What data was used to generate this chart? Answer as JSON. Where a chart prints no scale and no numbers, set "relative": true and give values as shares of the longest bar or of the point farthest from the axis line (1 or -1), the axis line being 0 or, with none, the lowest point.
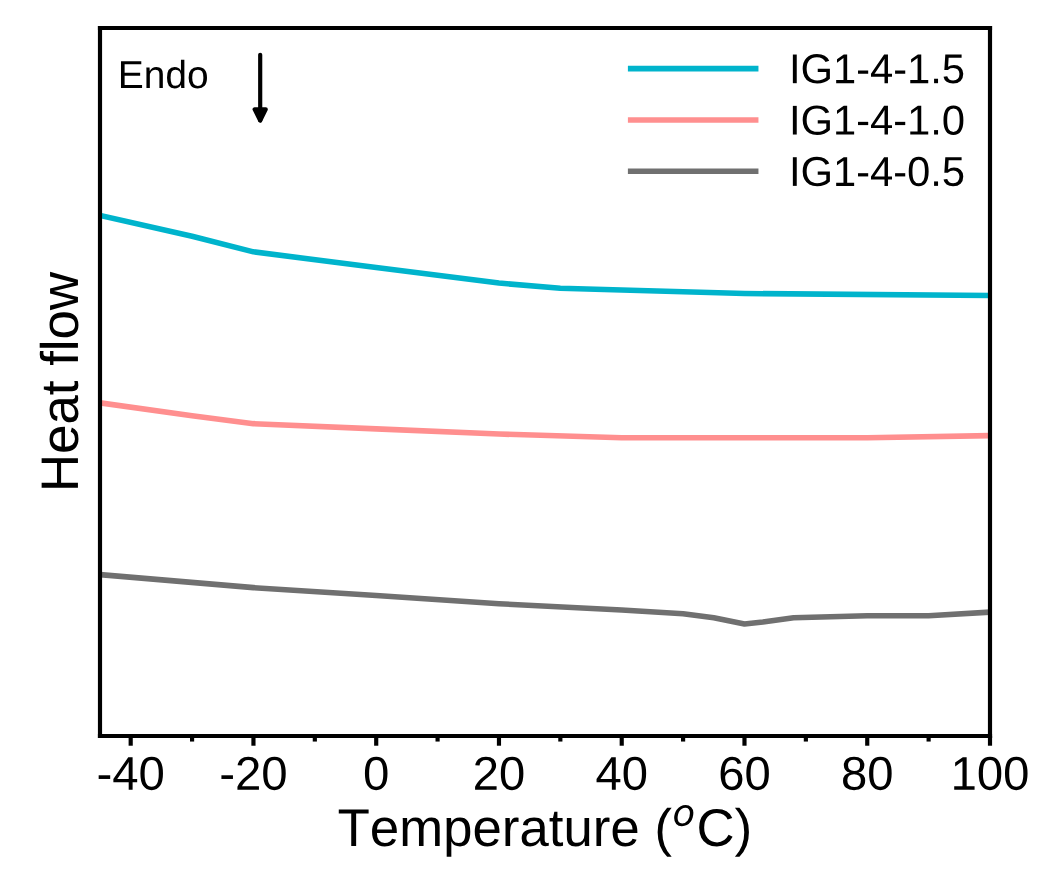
{
  "chart_data": {
    "type": "line",
    "relative": true,
    "xlabel": "Temperature ($^{o}$C)",
    "ylabel": "Heat flow",
    "annotations": [
      "Endo"
    ],
    "xlim": [
      -45,
      100
    ],
    "xticks": [
      -40,
      -20,
      0,
      20,
      40,
      60,
      80,
      100
    ],
    "tick_labels": "x",
    "legend": "top right",
    "grid": false,
    "line_style": "solid",
    "series": [
      {
        "name": "IG1-4-1.5",
        "color": "#00b4cc",
        "x": [
          -45,
          -30,
          -20,
          0,
          20,
          30,
          60,
          100
        ],
        "values": [
          1.0,
          0.96,
          0.93,
          0.9,
          0.87,
          0.86,
          0.85,
          0.846
        ]
      },
      {
        "name": "IG1-4-1.0",
        "color": "#ff8f8f",
        "x": [
          -45,
          -30,
          -20,
          0,
          20,
          40,
          60,
          80,
          100
        ],
        "values": [
          0.64,
          0.615,
          0.6,
          0.59,
          0.58,
          0.573,
          0.573,
          0.573,
          0.577
        ]
      },
      {
        "name": "IG1-4-0.5",
        "color": "#707070",
        "x": [
          -45,
          -20,
          0,
          20,
          40,
          50,
          55,
          60,
          63,
          68,
          80,
          90,
          100
        ],
        "values": [
          0.31,
          0.285,
          0.27,
          0.254,
          0.242,
          0.235,
          0.227,
          0.215,
          0.219,
          0.227,
          0.231,
          0.231,
          0.238
        ]
      }
    ]
  }
}
